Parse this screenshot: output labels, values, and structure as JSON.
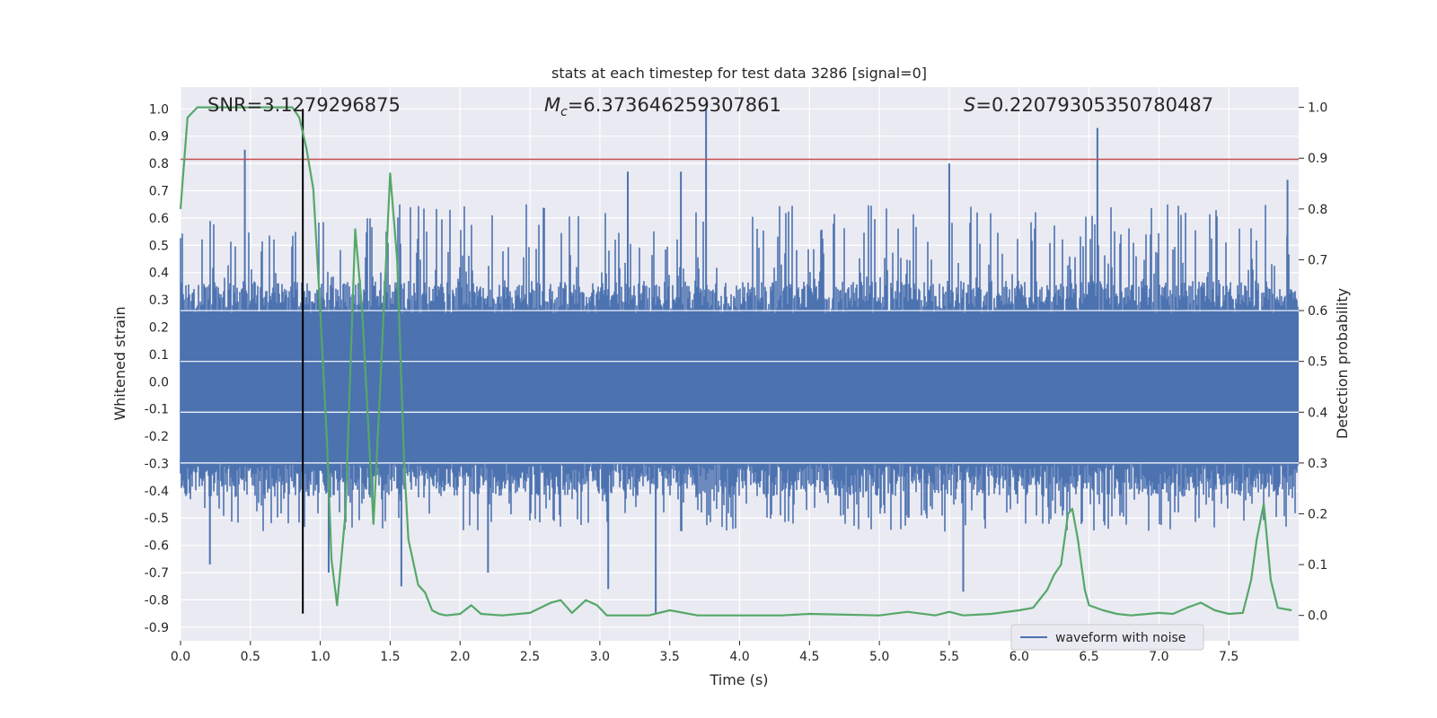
{
  "chart_data": {
    "type": "line",
    "title": "stats at each timestep for test data 3286 [signal=0]",
    "xlabel": "Time (s)",
    "ylabel": "Whitened strain",
    "y2label": "Detection probability",
    "xlim": [
      0.0,
      8.0
    ],
    "ylim": [
      -0.95,
      1.08
    ],
    "y2lim": [
      -0.05,
      1.04
    ],
    "xticks": [
      0.0,
      0.5,
      1.0,
      1.5,
      2.0,
      2.5,
      3.0,
      3.5,
      4.0,
      4.5,
      5.0,
      5.5,
      6.0,
      6.5,
      7.0,
      7.5
    ],
    "xtick_labels": [
      "0.0",
      "0.5",
      "1.0",
      "1.5",
      "2.0",
      "2.5",
      "3.0",
      "3.5",
      "4.0",
      "4.5",
      "5.0",
      "5.5",
      "6.0",
      "6.5",
      "7.0",
      "7.5"
    ],
    "yticks": [
      1.0,
      0.9,
      0.8,
      0.7,
      0.6,
      0.5,
      0.4,
      0.3,
      0.2,
      0.1,
      0.0,
      -0.1,
      -0.2,
      -0.3,
      -0.4,
      -0.5,
      -0.6,
      -0.7,
      -0.8,
      -0.9
    ],
    "ytick_labels": [
      "1.0",
      "0.9",
      "0.8",
      "0.7",
      "0.6",
      "0.5",
      "0.4",
      "0.3",
      "0.2",
      "0.1",
      "0.0",
      "-0.1",
      "-0.2",
      "-0.3",
      "-0.4",
      "-0.5",
      "-0.6",
      "-0.7",
      "-0.8",
      "-0.9"
    ],
    "y2ticks": [
      0.0,
      0.1,
      0.2,
      0.3,
      0.4,
      0.5,
      0.6,
      0.7,
      0.8,
      0.9,
      1.0
    ],
    "y2tick_labels": [
      "0.0",
      "0.1",
      "0.2",
      "0.3",
      "0.4",
      "0.5",
      "0.6",
      "0.7",
      "0.8",
      "0.9",
      "1.0"
    ],
    "grid": true,
    "legend_position": "lower-right",
    "annotations": {
      "snr": "SNR=3.1279296875",
      "mc_symbol": "M",
      "mc_sub": "c",
      "mc_value": "=6.373646259307861",
      "s_symbol": "S",
      "s_value": "=0.22079305350780487"
    },
    "series": [
      {
        "name": "waveform with noise",
        "color": "#4c72b0",
        "axis": "left",
        "envelope": {
          "typical_top": 0.25,
          "typical_bottom": -0.3,
          "peak_top": 0.65,
          "peak_bottom": -0.55
        },
        "spikes": [
          [
            0.46,
            0.85
          ],
          [
            3.76,
            1.0
          ],
          [
            6.56,
            0.93
          ],
          [
            5.5,
            0.8
          ],
          [
            3.4,
            -0.85
          ],
          [
            1.58,
            -0.75
          ],
          [
            5.6,
            -0.77
          ],
          [
            3.06,
            -0.76
          ],
          [
            1.06,
            -0.7
          ],
          [
            2.2,
            -0.7
          ],
          [
            3.2,
            0.77
          ],
          [
            3.58,
            0.77
          ],
          [
            7.92,
            0.74
          ],
          [
            0.21,
            -0.67
          ]
        ]
      },
      {
        "name": "",
        "color": "#55a868",
        "axis": "right",
        "x": [
          0.0,
          0.05,
          0.12,
          0.2,
          0.4,
          0.6,
          0.7,
          0.8,
          0.85,
          0.9,
          0.95,
          1.0,
          1.05,
          1.08,
          1.12,
          1.18,
          1.25,
          1.3,
          1.38,
          1.42,
          1.5,
          1.55,
          1.6,
          1.63,
          1.7,
          1.75,
          1.8,
          1.85,
          1.9,
          2.0,
          2.08,
          2.15,
          2.3,
          2.5,
          2.65,
          2.72,
          2.8,
          2.9,
          2.98,
          3.05,
          3.15,
          3.35,
          3.5,
          3.7,
          4.0,
          4.3,
          4.5,
          5.0,
          5.2,
          5.4,
          5.5,
          5.6,
          5.8,
          6.0,
          6.1,
          6.2,
          6.25,
          6.3,
          6.35,
          6.38,
          6.42,
          6.47,
          6.5,
          6.6,
          6.7,
          6.8,
          7.0,
          7.1,
          7.2,
          7.3,
          7.4,
          7.5,
          7.6,
          7.66,
          7.7,
          7.75,
          7.8,
          7.85,
          7.95
        ],
        "y": [
          0.8,
          0.98,
          1.0,
          1.0,
          1.0,
          1.0,
          1.0,
          1.0,
          0.98,
          0.92,
          0.84,
          0.6,
          0.33,
          0.11,
          0.02,
          0.2,
          0.76,
          0.6,
          0.18,
          0.4,
          0.87,
          0.7,
          0.3,
          0.15,
          0.06,
          0.045,
          0.01,
          0.003,
          0.0,
          0.003,
          0.02,
          0.003,
          0.0,
          0.005,
          0.025,
          0.03,
          0.005,
          0.03,
          0.02,
          0.0,
          0.0,
          0.0,
          0.01,
          0.0,
          0.0,
          0.0,
          0.003,
          0.0,
          0.007,
          0.0,
          0.007,
          0.0,
          0.003,
          0.01,
          0.015,
          0.05,
          0.08,
          0.1,
          0.2,
          0.21,
          0.15,
          0.05,
          0.02,
          0.01,
          0.003,
          0.0,
          0.005,
          0.003,
          0.015,
          0.025,
          0.01,
          0.003,
          0.005,
          0.07,
          0.15,
          0.22,
          0.07,
          0.015,
          0.01
        ]
      }
    ],
    "hlines": [
      {
        "axis": "left",
        "y": 0.815,
        "color": "#c44e52"
      }
    ],
    "vlines": [
      {
        "axis": "left",
        "x": 0.875,
        "y_from": -0.85,
        "y_to": 1.0,
        "color": "#000000"
      }
    ]
  }
}
